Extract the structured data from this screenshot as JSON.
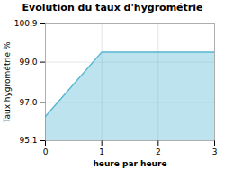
{
  "chart_data": {
    "type": "area",
    "title": "Evolution du taux d'hygrométrie",
    "xlabel": "heure par heure",
    "ylabel": "Taux hygrométrie %",
    "x": [
      0,
      1,
      3
    ],
    "values": [
      96.3,
      99.5,
      99.5
    ],
    "color": "#5bb8d4",
    "xlim": [
      0,
      3
    ],
    "xticks": [
      0,
      1,
      2,
      3
    ],
    "ylim": [
      95.1,
      100.9
    ],
    "yticks": [
      95.1,
      {
        "value": 97,
        "label": "97.0"
      },
      {
        "value": 99,
        "label": "99.0"
      },
      100.9
    ],
    "grid": true
  }
}
